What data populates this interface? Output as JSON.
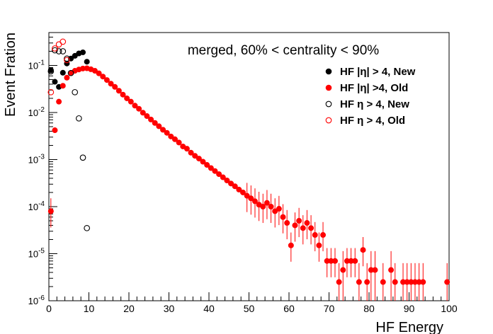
{
  "chart_data": {
    "type": "scatter",
    "title": "merged, 60% < centrality < 90%",
    "xlabel": "HF Energy",
    "ylabel": "Event Fration",
    "xlim": [
      0,
      100
    ],
    "ylim": [
      1e-06,
      0.5
    ],
    "yscale": "log",
    "grid": false,
    "legend_position": "top-right",
    "x_ticks": [
      0,
      10,
      20,
      30,
      40,
      50,
      60,
      70,
      80,
      90,
      100
    ],
    "x_tick_labels": [
      "0",
      "10",
      "20",
      "30",
      "40",
      "50",
      "60",
      "70",
      "80",
      "90",
      "100"
    ],
    "y_ticks": [
      1e-06,
      1e-05,
      0.0001,
      0.001,
      0.01,
      0.1
    ],
    "y_tick_labels": [
      {
        "base": "10",
        "exp": "-6"
      },
      {
        "base": "10",
        "exp": "-5"
      },
      {
        "base": "10",
        "exp": "-4"
      },
      {
        "base": "10",
        "exp": "-3"
      },
      {
        "base": "10",
        "exp": "-2"
      },
      {
        "base": "10",
        "exp": "-1"
      }
    ],
    "series": [
      {
        "name": "HF |η| > 4, New",
        "marker": "filled",
        "color": "#000000",
        "points": [
          [
            0.5,
            0.08
          ],
          [
            1.5,
            0.045
          ],
          [
            2.5,
            0.035
          ],
          [
            3.5,
            0.07
          ],
          [
            4.5,
            0.11
          ],
          [
            5.5,
            0.14
          ],
          [
            6.5,
            0.16
          ],
          [
            7.5,
            0.18
          ],
          [
            8.5,
            0.19
          ],
          [
            9.5,
            0.12
          ]
        ]
      },
      {
        "name": "HF |η| >4, Old",
        "marker": "filled",
        "color": "#ff0000",
        "points": [
          [
            0.5,
            8e-05
          ],
          [
            1.5,
            0.0042
          ],
          [
            2.5,
            0.017
          ],
          [
            3.5,
            0.037
          ],
          [
            4.5,
            0.055
          ],
          [
            5.5,
            0.069
          ],
          [
            6.5,
            0.077
          ],
          [
            7.5,
            0.082
          ],
          [
            8.5,
            0.086
          ],
          [
            9.5,
            0.087
          ],
          [
            10.5,
            0.083
          ],
          [
            11.5,
            0.077
          ],
          [
            12.5,
            0.068
          ],
          [
            13.5,
            0.058
          ],
          [
            14.5,
            0.049
          ],
          [
            15.5,
            0.041
          ],
          [
            16.5,
            0.035
          ],
          [
            17.5,
            0.029
          ],
          [
            18.5,
            0.024
          ],
          [
            19.5,
            0.02
          ],
          [
            20.5,
            0.017
          ],
          [
            21.5,
            0.014
          ],
          [
            22.5,
            0.012
          ],
          [
            23.5,
            0.0099
          ],
          [
            24.5,
            0.0084
          ],
          [
            25.5,
            0.0071
          ],
          [
            26.5,
            0.006
          ],
          [
            27.5,
            0.0051
          ],
          [
            28.5,
            0.0043
          ],
          [
            29.5,
            0.0037
          ],
          [
            30.5,
            0.0031
          ],
          [
            31.5,
            0.0027
          ],
          [
            32.5,
            0.0023
          ],
          [
            33.5,
            0.0019
          ],
          [
            34.5,
            0.0017
          ],
          [
            35.5,
            0.0014
          ],
          [
            36.5,
            0.0012
          ],
          [
            37.5,
            0.00105
          ],
          [
            38.5,
            0.0009
          ],
          [
            39.5,
            0.00077
          ],
          [
            40.5,
            0.00066
          ],
          [
            41.5,
            0.00057
          ],
          [
            42.5,
            0.00049
          ],
          [
            43.5,
            0.00042
          ],
          [
            44.5,
            0.00036
          ],
          [
            45.5,
            0.00031
          ],
          [
            46.5,
            0.00027
          ],
          [
            47.5,
            0.00023
          ],
          [
            48.5,
            0.0002
          ],
          [
            49.5,
            0.00017
          ],
          [
            50.5,
            0.00015
          ],
          [
            51.5,
            0.00013
          ],
          [
            52.5,
            0.00011
          ],
          [
            53.5,
            0.0001
          ],
          [
            54.5,
            0.00012
          ],
          [
            55.5,
            0.0001
          ],
          [
            56.5,
            8e-05
          ],
          [
            57.5,
            9e-05
          ],
          [
            58.5,
            6e-05
          ],
          [
            59.5,
            4.5e-05
          ],
          [
            60.5,
            1.5e-05
          ],
          [
            61.5,
            4e-05
          ],
          [
            62.5,
            5e-05
          ],
          [
            63.5,
            3.5e-05
          ],
          [
            64.5,
            4.5e-05
          ],
          [
            65.5,
            3.5e-05
          ],
          [
            66.5,
            2.5e-05
          ],
          [
            67.5,
            1.5e-05
          ],
          [
            68.5,
            2.5e-05
          ],
          [
            69.5,
            7e-06
          ],
          [
            70.5,
            7e-06
          ],
          [
            71.5,
            7e-06
          ],
          [
            72.5,
            2.5e-06
          ],
          [
            73.5,
            4.5e-06
          ],
          [
            74.5,
            7e-06
          ],
          [
            75.5,
            7e-06
          ],
          [
            76.5,
            7e-06
          ],
          [
            77.5,
            2.5e-06
          ],
          [
            78.5,
            1.2e-05
          ],
          [
            79.5,
            2.5e-06
          ],
          [
            80.5,
            4.5e-06
          ],
          [
            81.5,
            4.5e-06
          ],
          [
            83.5,
            2.5e-06
          ],
          [
            85.5,
            4.5e-06
          ],
          [
            86.5,
            2.5e-06
          ],
          [
            88.5,
            2.5e-06
          ],
          [
            89.5,
            2.5e-06
          ],
          [
            90.5,
            2.5e-06
          ],
          [
            91.5,
            2.5e-06
          ],
          [
            92.5,
            2.5e-06
          ],
          [
            93.5,
            2.5e-06
          ],
          [
            99.5,
            2.5e-06
          ]
        ]
      },
      {
        "name": "HF η > 4, New",
        "marker": "open",
        "color": "#000000",
        "points": [
          [
            0.5,
            0.075
          ],
          [
            1.5,
            0.21
          ],
          [
            2.5,
            0.2
          ],
          [
            3.5,
            0.2
          ],
          [
            4.5,
            0.14
          ],
          [
            5.5,
            0.069
          ],
          [
            6.5,
            0.027
          ],
          [
            7.5,
            0.0075
          ],
          [
            8.5,
            0.0011
          ],
          [
            9.5,
            3.5e-05
          ]
        ]
      },
      {
        "name": "HF η > 4, Old",
        "marker": "open",
        "color": "#ff0000",
        "points": [
          [
            0.5,
            0.027
          ],
          [
            1.5,
            0.23
          ],
          [
            2.5,
            0.28
          ],
          [
            3.5,
            0.32
          ],
          [
            4.5,
            0.13
          ]
        ]
      }
    ]
  }
}
